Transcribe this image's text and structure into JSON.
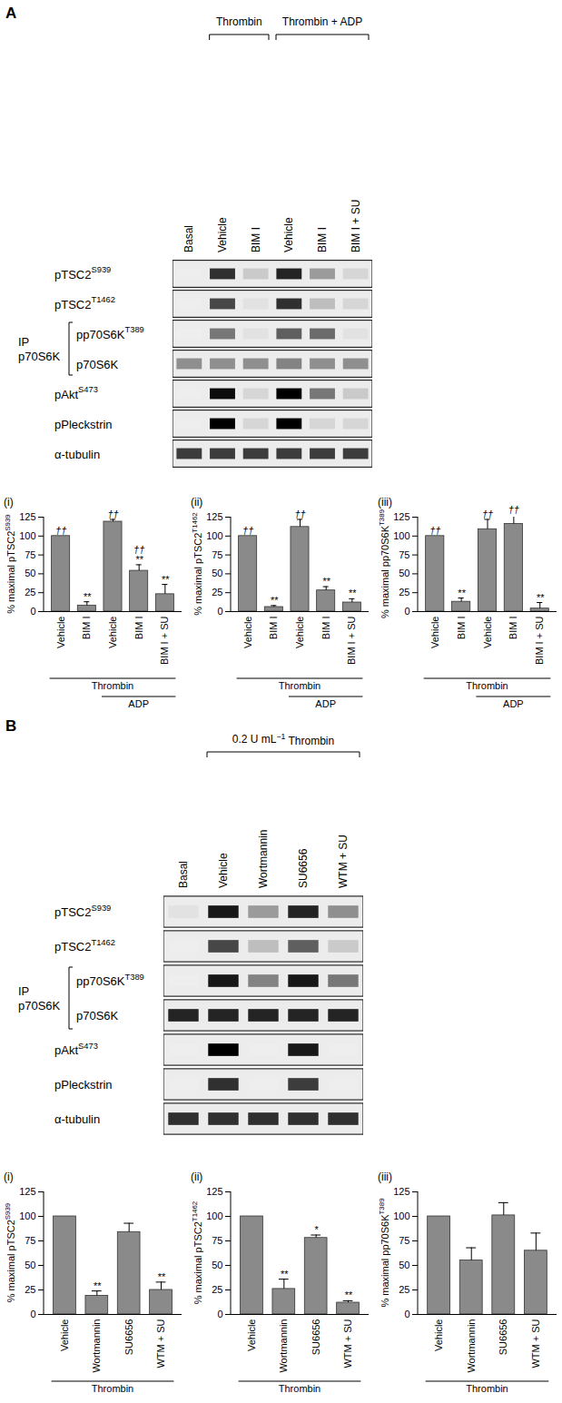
{
  "blots": [
    {
      "label": "A",
      "headers": [
        {
          "text": {
            "text": "Thrombin"
          },
          "lanes": [
            1,
            2
          ]
        },
        {
          "text": {
            "text": "Thrombin + ADP"
          },
          "lanes": [
            3,
            5
          ]
        }
      ],
      "lanes": [
        "Basal",
        "Vehicle",
        "BIM I",
        "Vehicle",
        "BIM I",
        "BIM I + SU"
      ],
      "ip": {
        "lines": [
          "IP",
          "p70S6K"
        ],
        "rows": [
          2,
          3
        ]
      },
      "band_scale": [
        0,
        1
      ],
      "rows": [
        {
          "label": {
            "text": "pTSC2",
            "sup": "S939"
          },
          "bands": [
            0,
            0.8,
            0.15,
            0.85,
            0.35,
            0.1
          ]
        },
        {
          "label": {
            "text": "pTSC2",
            "sup": "T1462"
          },
          "bands": [
            0,
            0.7,
            0.05,
            0.8,
            0.2,
            0.1
          ]
        },
        {
          "label": {
            "text": "pp70S6K",
            "sup": "T389"
          },
          "bands": [
            0,
            0.5,
            0.05,
            0.6,
            0.55,
            0.05
          ]
        },
        {
          "label": {
            "text": "p70S6K"
          },
          "bands": [
            0.4,
            0.4,
            0.4,
            0.45,
            0.4,
            0.4
          ]
        },
        {
          "label": {
            "text": "pAkt",
            "sup": "S473"
          },
          "bands": [
            0,
            0.95,
            0.1,
            1,
            0.5,
            0.15
          ]
        },
        {
          "label": {
            "text": "pPleckstrin"
          },
          "bands": [
            0,
            1,
            0.1,
            1,
            0.1,
            0.1
          ]
        },
        {
          "label": {
            "text": "α-tubulin"
          },
          "bands": [
            0.75,
            0.75,
            0.75,
            0.75,
            0.75,
            0.75
          ]
        }
      ]
    },
    {
      "label": "B",
      "headers": [
        {
          "text": {
            "text": "0.2 U mL",
            "sup": "−1",
            "after": " Thrombin"
          },
          "lanes": [
            1,
            4
          ]
        }
      ],
      "lanes": [
        "Basal",
        "Vehicle",
        "Wortmannin",
        "SU6656",
        "WTM + SU"
      ],
      "ip": {
        "lines": [
          "IP",
          "p70S6K"
        ],
        "rows": [
          2,
          3
        ]
      },
      "band_scale": [
        0,
        1
      ],
      "rows": [
        {
          "label": {
            "text": "pTSC2",
            "sup": "S939"
          },
          "bands": [
            0.05,
            0.9,
            0.35,
            0.85,
            0.4
          ]
        },
        {
          "label": {
            "text": "pTSC2",
            "sup": "T1462"
          },
          "bands": [
            0,
            0.7,
            0.2,
            0.6,
            0.15
          ]
        },
        {
          "label": {
            "text": "pp70S6K",
            "sup": "T389"
          },
          "bands": [
            0,
            0.9,
            0.45,
            0.9,
            0.5
          ]
        },
        {
          "label": {
            "text": "p70S6K"
          },
          "bands": [
            0.85,
            0.85,
            0.85,
            0.85,
            0.85
          ]
        },
        {
          "label": {
            "text": "pAkt",
            "sup": "S473"
          },
          "bands": [
            0,
            1,
            0,
            0.9,
            0
          ]
        },
        {
          "label": {
            "text": "pPleckstrin"
          },
          "bands": [
            0,
            0.8,
            0,
            0.75,
            0
          ]
        },
        {
          "label": {
            "text": "α-tubulin"
          },
          "bands": [
            0.8,
            0.8,
            0.8,
            0.8,
            0.8
          ]
        }
      ]
    }
  ],
  "chart_data": [
    {
      "type": "bar",
      "subtitle": "(i)",
      "ylabel": {
        "text": "% maximal pTSC2",
        "sup": "S939"
      },
      "categories": [
        "Vehicle",
        "BIM I",
        "Vehicle",
        "BIM I",
        "BIM I + SU"
      ],
      "values": [
        100,
        8,
        119,
        54,
        23
      ],
      "errors": [
        0,
        5,
        3,
        8,
        13
      ],
      "annotations": [
        [
          "††"
        ],
        [
          "**"
        ],
        [
          "††"
        ],
        [
          "††",
          "**"
        ],
        [
          "**"
        ]
      ],
      "groups": [
        {
          "label": "Thrombin",
          "from": 0,
          "to": 4
        },
        {
          "label": "ADP",
          "from": 2,
          "to": 4
        }
      ],
      "color": "#8a8a8a",
      "ylim": [
        0,
        125
      ],
      "yticks": [
        0,
        25,
        50,
        75,
        100,
        125
      ]
    },
    {
      "type": "bar",
      "subtitle": "(ii)",
      "ylabel": {
        "text": "% maximal pTSC2",
        "sup": "T1462"
      },
      "categories": [
        "Vehicle",
        "BIM I",
        "Vehicle",
        "BIM I",
        "BIM I + SU"
      ],
      "values": [
        100,
        6,
        112,
        28,
        12
      ],
      "errors": [
        0,
        2,
        10,
        5,
        5
      ],
      "annotations": [
        [
          "††"
        ],
        [
          "**"
        ],
        [
          "††"
        ],
        [
          "**"
        ],
        [
          "**"
        ]
      ],
      "groups": [
        {
          "label": "Thrombin",
          "from": 0,
          "to": 4
        },
        {
          "label": "ADP",
          "from": 2,
          "to": 4
        }
      ],
      "color": "#8a8a8a",
      "ylim": [
        0,
        125
      ],
      "yticks": [
        0,
        25,
        50,
        75,
        100,
        125
      ]
    },
    {
      "type": "bar",
      "subtitle": "(iii)",
      "ylabel": {
        "text": "% maximal pp70S6K",
        "sup": "T389"
      },
      "categories": [
        "Vehicle",
        "BIM I",
        "Vehicle",
        "BIM I",
        "BIM I + SU"
      ],
      "values": [
        100,
        13,
        109,
        116,
        4
      ],
      "errors": [
        0,
        5,
        13,
        12,
        8
      ],
      "annotations": [
        [
          "††"
        ],
        [
          "**"
        ],
        [
          "††"
        ],
        [
          "††"
        ],
        [
          "**"
        ]
      ],
      "groups": [
        {
          "label": "Thrombin",
          "from": 0,
          "to": 4
        },
        {
          "label": "ADP",
          "from": 2,
          "to": 4
        }
      ],
      "color": "#8a8a8a",
      "ylim": [
        0,
        125
      ],
      "yticks": [
        0,
        25,
        50,
        75,
        100,
        125
      ]
    },
    {
      "type": "bar",
      "subtitle": "(i)",
      "ylabel": {
        "text": "% maximal pTSC2",
        "sup": "S939"
      },
      "categories": [
        "Vehicle",
        "Wortmannin",
        "SU6656",
        "WTM + SU"
      ],
      "values": [
        100,
        19,
        84,
        25
      ],
      "errors": [
        0,
        5,
        9,
        8
      ],
      "annotations": [
        [],
        [
          "**"
        ],
        [],
        [
          "**"
        ]
      ],
      "groups": [
        {
          "label": "Thrombin",
          "from": 0,
          "to": 3
        }
      ],
      "color": "#8a8a8a",
      "ylim": [
        0,
        125
      ],
      "yticks": [
        0,
        25,
        50,
        75,
        100,
        125
      ]
    },
    {
      "type": "bar",
      "subtitle": "(ii)",
      "ylabel": {
        "text": "% maximal pTSC2",
        "sup": "T1462"
      },
      "categories": [
        "Vehicle",
        "Wortmannin",
        "SU6656",
        "WTM + SU"
      ],
      "values": [
        100,
        26,
        78,
        12
      ],
      "errors": [
        0,
        10,
        3,
        2
      ],
      "annotations": [
        [],
        [
          "**"
        ],
        [
          "*"
        ],
        [
          "**"
        ]
      ],
      "groups": [
        {
          "label": "Thrombin",
          "from": 0,
          "to": 3
        }
      ],
      "color": "#8a8a8a",
      "ylim": [
        0,
        125
      ],
      "yticks": [
        0,
        25,
        50,
        75,
        100,
        125
      ]
    },
    {
      "type": "bar",
      "subtitle": "(iii)",
      "ylabel": {
        "text": "% maximal pp70S6K",
        "sup": "T389"
      },
      "categories": [
        "Vehicle",
        "Wortmannin",
        "SU6656",
        "WTM + SU"
      ],
      "values": [
        100,
        55,
        101,
        65
      ],
      "errors": [
        0,
        13,
        13,
        18
      ],
      "annotations": [
        [],
        [],
        [],
        []
      ],
      "groups": [
        {
          "label": "Thrombin",
          "from": 0,
          "to": 3
        }
      ],
      "color": "#8a8a8a",
      "ylim": [
        0,
        125
      ],
      "yticks": [
        0,
        25,
        50,
        75,
        100,
        125
      ]
    }
  ]
}
